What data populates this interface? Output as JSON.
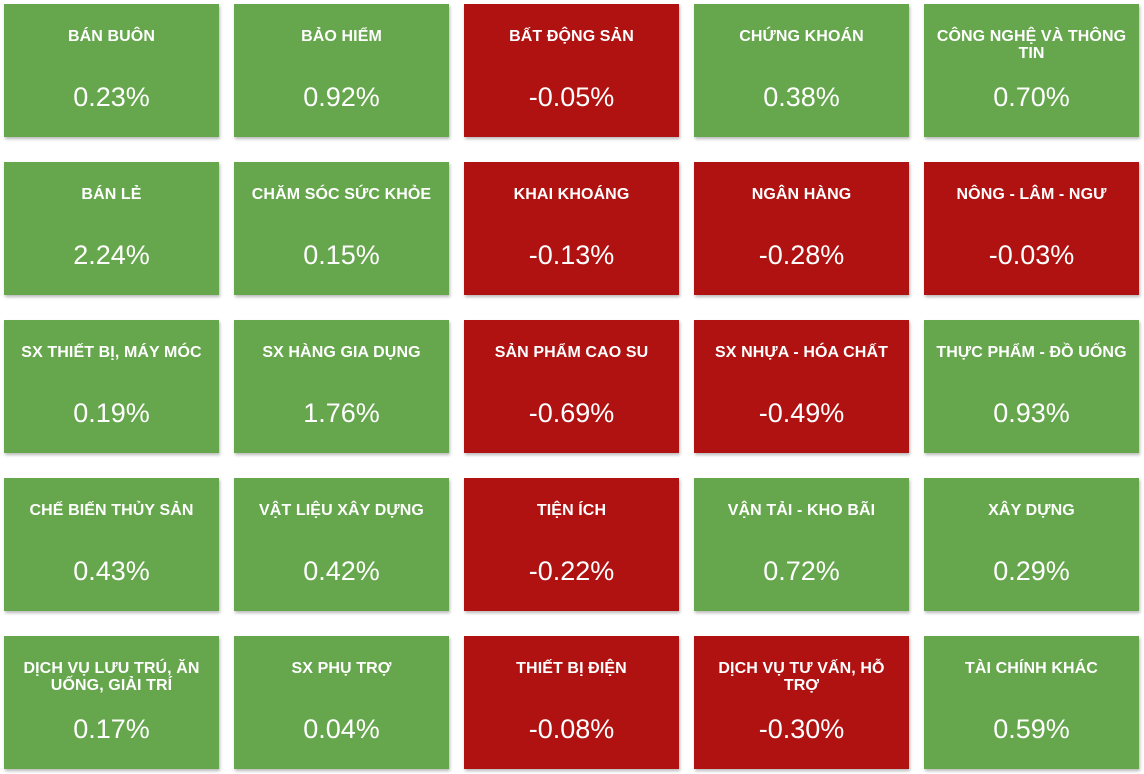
{
  "colors": {
    "up": "#66a64d",
    "down": "#b01212"
  },
  "tiles": [
    {
      "label": "BÁN BUÔN",
      "value": "0.23%",
      "status": "up"
    },
    {
      "label": "BẢO HIỂM",
      "value": "0.92%",
      "status": "up"
    },
    {
      "label": "BẤT ĐỘNG SẢN",
      "value": "-0.05%",
      "status": "down"
    },
    {
      "label": "CHỨNG KHOÁN",
      "value": "0.38%",
      "status": "up"
    },
    {
      "label": "CÔNG NGHỆ VÀ THÔNG TIN",
      "value": "0.70%",
      "status": "up"
    },
    {
      "label": "BÁN LẺ",
      "value": "2.24%",
      "status": "up"
    },
    {
      "label": "CHĂM SÓC SỨC KHỎE",
      "value": "0.15%",
      "status": "up"
    },
    {
      "label": "KHAI KHOÁNG",
      "value": "-0.13%",
      "status": "down"
    },
    {
      "label": "NGÂN HÀNG",
      "value": "-0.28%",
      "status": "down"
    },
    {
      "label": "NÔNG - LÂM - NGƯ",
      "value": "-0.03%",
      "status": "down"
    },
    {
      "label": "SX THIẾT BỊ, MÁY MÓC",
      "value": "0.19%",
      "status": "up"
    },
    {
      "label": "SX HÀNG GIA DỤNG",
      "value": "1.76%",
      "status": "up"
    },
    {
      "label": "SẢN PHẨM CAO SU",
      "value": "-0.69%",
      "status": "down"
    },
    {
      "label": "SX NHỰA - HÓA CHẤT",
      "value": "-0.49%",
      "status": "down"
    },
    {
      "label": "THỰC PHẨM - ĐỒ UỐNG",
      "value": "0.93%",
      "status": "up"
    },
    {
      "label": "CHẾ BIẾN THỦY SẢN",
      "value": "0.43%",
      "status": "up"
    },
    {
      "label": "VẬT LIỆU XÂY DỰNG",
      "value": "0.42%",
      "status": "up"
    },
    {
      "label": "TIỆN ÍCH",
      "value": "-0.22%",
      "status": "down"
    },
    {
      "label": "VẬN TẢI - KHO BÃI",
      "value": "0.72%",
      "status": "up"
    },
    {
      "label": "XÂY DỰNG",
      "value": "0.29%",
      "status": "up"
    },
    {
      "label": "DỊCH VỤ LƯU TRÚ, ĂN UỐNG, GIẢI TRÍ",
      "value": "0.17%",
      "status": "up"
    },
    {
      "label": "SX PHỤ TRỢ",
      "value": "0.04%",
      "status": "up"
    },
    {
      "label": "THIẾT BỊ ĐIỆN",
      "value": "-0.08%",
      "status": "down"
    },
    {
      "label": "DỊCH VỤ TƯ VẤN, HỖ TRỢ",
      "value": "-0.30%",
      "status": "down"
    },
    {
      "label": "TÀI CHÍNH KHÁC",
      "value": "0.59%",
      "status": "up"
    }
  ]
}
